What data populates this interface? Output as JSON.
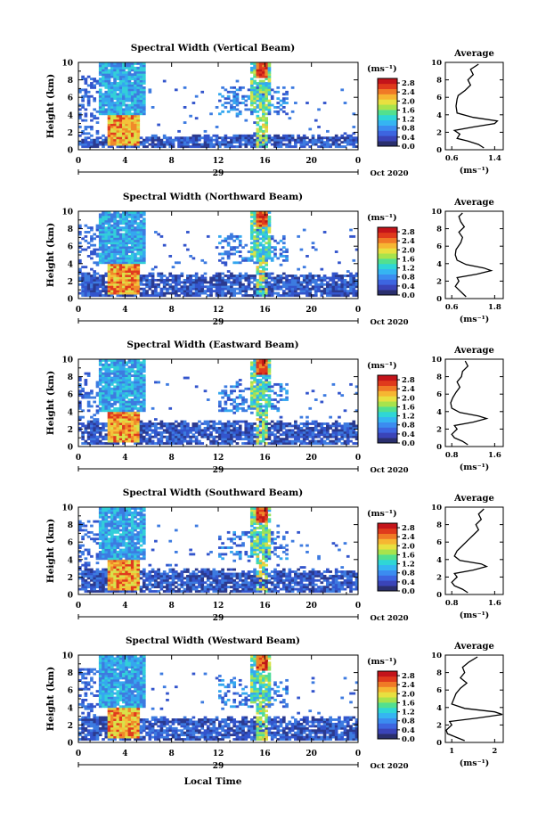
{
  "figure": {
    "xlabel": "Local Time",
    "date_label": "Oct 2020",
    "day_label": "29",
    "cbar_unit": "(ms⁻¹)",
    "avg_title": "Average",
    "avg_xlabel": "(ms⁻¹)",
    "heatmap_colors": [
      "#2b3a8f",
      "#3355cc",
      "#3d7be0",
      "#35a7ef",
      "#33cfd9",
      "#4fdc9b",
      "#9be25a",
      "#d9e24a",
      "#f4c23a",
      "#f08a2a",
      "#e03a1e",
      "#c01818"
    ],
    "cbar_colors": [
      "#2a2f6e",
      "#3a44b8",
      "#3d65e0",
      "#3b8cf0",
      "#35b5f2",
      "#2fd6d6",
      "#52e08f",
      "#a8e34c",
      "#e8e040",
      "#f6b632",
      "#f07a26",
      "#e03a1c",
      "#c4141a"
    ]
  },
  "chart_data": [
    {
      "type": "heatmap",
      "title": "Spectral Width (Vertical Beam)",
      "ylabel": "Height (km)",
      "x_ticks": [
        "0",
        "4",
        "8",
        "12",
        "16",
        "20",
        "0"
      ],
      "y_ticks": [
        "0",
        "2",
        "4",
        "6",
        "8",
        "10"
      ],
      "xlim": [
        0,
        24
      ],
      "ylim": [
        0,
        10
      ],
      "cbar_ticks": [
        "0.0",
        "0.4",
        "0.8",
        "1.2",
        "1.6",
        "2.0",
        "2.4",
        "2.8"
      ],
      "avg_x_ticks": [
        "0.6",
        "1.4"
      ],
      "avg_profile": [
        [
          1.2,
          0.2
        ],
        [
          1.1,
          0.6
        ],
        [
          0.9,
          1.0
        ],
        [
          0.7,
          1.3
        ],
        [
          0.75,
          1.8
        ],
        [
          0.65,
          2.2
        ],
        [
          1.0,
          2.6
        ],
        [
          1.4,
          3.0
        ],
        [
          1.45,
          3.3
        ],
        [
          1.0,
          3.7
        ],
        [
          0.7,
          4.2
        ],
        [
          0.68,
          5.0
        ],
        [
          0.7,
          5.8
        ],
        [
          0.72,
          6.2
        ],
        [
          0.85,
          6.8
        ],
        [
          0.95,
          7.4
        ],
        [
          0.9,
          8.0
        ],
        [
          1.0,
          8.6
        ],
        [
          0.95,
          9.2
        ],
        [
          1.1,
          9.8
        ]
      ]
    },
    {
      "type": "heatmap",
      "title": "Spectral Width (Northward Beam)",
      "ylabel": "Height (km)",
      "x_ticks": [
        "0",
        "4",
        "8",
        "12",
        "16",
        "20",
        "0"
      ],
      "y_ticks": [
        "0",
        "2",
        "4",
        "6",
        "8",
        "10"
      ],
      "xlim": [
        0,
        24
      ],
      "ylim": [
        0,
        10
      ],
      "cbar_ticks": [
        "0.0",
        "0.4",
        "0.8",
        "1.2",
        "1.6",
        "2.0",
        "2.4",
        "2.8"
      ],
      "avg_x_ticks": [
        "0.6",
        "1.8"
      ],
      "avg_profile": [
        [
          1.0,
          0.2
        ],
        [
          0.9,
          0.6
        ],
        [
          0.8,
          1.0
        ],
        [
          0.7,
          1.4
        ],
        [
          0.8,
          2.0
        ],
        [
          0.75,
          2.4
        ],
        [
          1.3,
          2.8
        ],
        [
          1.7,
          3.2
        ],
        [
          1.5,
          3.5
        ],
        [
          1.0,
          3.9
        ],
        [
          0.75,
          4.4
        ],
        [
          0.7,
          5.0
        ],
        [
          0.72,
          5.6
        ],
        [
          0.85,
          6.4
        ],
        [
          0.9,
          7.0
        ],
        [
          0.8,
          7.6
        ],
        [
          0.95,
          8.2
        ],
        [
          0.85,
          8.8
        ],
        [
          0.8,
          9.4
        ],
        [
          0.9,
          9.8
        ]
      ]
    },
    {
      "type": "heatmap",
      "title": "Spectral Width (Eastward Beam)",
      "ylabel": "Height (km)",
      "x_ticks": [
        "0",
        "4",
        "8",
        "12",
        "16",
        "20",
        "0"
      ],
      "y_ticks": [
        "0",
        "2",
        "4",
        "6",
        "8",
        "10"
      ],
      "xlim": [
        0,
        24
      ],
      "ylim": [
        0,
        10
      ],
      "cbar_ticks": [
        "0.0",
        "0.4",
        "0.8",
        "1.2",
        "1.6",
        "2.0",
        "2.4",
        "2.8"
      ],
      "avg_x_ticks": [
        "0.8",
        "1.6"
      ],
      "avg_profile": [
        [
          1.1,
          0.2
        ],
        [
          1.0,
          0.6
        ],
        [
          0.85,
          1.0
        ],
        [
          0.8,
          1.4
        ],
        [
          0.9,
          2.0
        ],
        [
          0.85,
          2.4
        ],
        [
          1.2,
          2.8
        ],
        [
          1.45,
          3.2
        ],
        [
          1.3,
          3.5
        ],
        [
          0.95,
          3.9
        ],
        [
          0.8,
          4.4
        ],
        [
          0.78,
          5.0
        ],
        [
          0.82,
          5.6
        ],
        [
          0.88,
          6.2
        ],
        [
          0.95,
          6.8
        ],
        [
          0.9,
          7.4
        ],
        [
          0.98,
          8.0
        ],
        [
          1.0,
          8.6
        ],
        [
          1.1,
          9.2
        ],
        [
          1.05,
          9.8
        ]
      ]
    },
    {
      "type": "heatmap",
      "title": "Spectral Width (Southward Beam)",
      "ylabel": "Height (km)",
      "x_ticks": [
        "0",
        "4",
        "8",
        "12",
        "16",
        "20",
        "0"
      ],
      "y_ticks": [
        "0",
        "2",
        "4",
        "6",
        "8",
        "10"
      ],
      "xlim": [
        0,
        24
      ],
      "ylim": [
        0,
        10
      ],
      "cbar_ticks": [
        "0.0",
        "0.4",
        "0.8",
        "1.2",
        "1.6",
        "2.0",
        "2.4",
        "2.8"
      ],
      "avg_x_ticks": [
        "0.8",
        "1.6"
      ],
      "avg_profile": [
        [
          1.1,
          0.2
        ],
        [
          1.0,
          0.6
        ],
        [
          0.85,
          1.0
        ],
        [
          0.8,
          1.4
        ],
        [
          0.9,
          2.0
        ],
        [
          0.85,
          2.4
        ],
        [
          1.2,
          2.8
        ],
        [
          1.45,
          3.2
        ],
        [
          1.35,
          3.5
        ],
        [
          0.95,
          3.9
        ],
        [
          0.85,
          4.4
        ],
        [
          0.9,
          5.0
        ],
        [
          1.0,
          5.6
        ],
        [
          1.1,
          6.2
        ],
        [
          1.2,
          6.8
        ],
        [
          1.3,
          7.4
        ],
        [
          1.25,
          8.0
        ],
        [
          1.35,
          8.6
        ],
        [
          1.3,
          9.2
        ],
        [
          1.4,
          9.8
        ]
      ]
    },
    {
      "type": "heatmap",
      "title": "Spectral Width (Westward Beam)",
      "ylabel": "Height (km)",
      "x_ticks": [
        "0",
        "4",
        "8",
        "12",
        "16",
        "20",
        "0"
      ],
      "y_ticks": [
        "0",
        "2",
        "4",
        "6",
        "8",
        "10"
      ],
      "xlim": [
        0,
        24
      ],
      "ylim": [
        0,
        10
      ],
      "cbar_ticks": [
        "0.0",
        "0.4",
        "0.8",
        "1.2",
        "1.6",
        "2.0",
        "2.4",
        "2.8"
      ],
      "avg_x_ticks": [
        "1",
        "2"
      ],
      "avg_profile": [
        [
          1.3,
          0.2
        ],
        [
          1.1,
          0.6
        ],
        [
          0.9,
          1.0
        ],
        [
          0.85,
          1.4
        ],
        [
          1.0,
          2.0
        ],
        [
          0.95,
          2.4
        ],
        [
          1.6,
          2.8
        ],
        [
          2.2,
          3.2
        ],
        [
          2.0,
          3.5
        ],
        [
          1.3,
          3.9
        ],
        [
          1.0,
          4.4
        ],
        [
          1.05,
          5.0
        ],
        [
          1.1,
          5.6
        ],
        [
          1.2,
          6.2
        ],
        [
          1.35,
          6.8
        ],
        [
          1.2,
          7.4
        ],
        [
          1.3,
          8.0
        ],
        [
          1.25,
          8.6
        ],
        [
          1.4,
          9.2
        ],
        [
          1.6,
          9.8
        ]
      ]
    }
  ]
}
